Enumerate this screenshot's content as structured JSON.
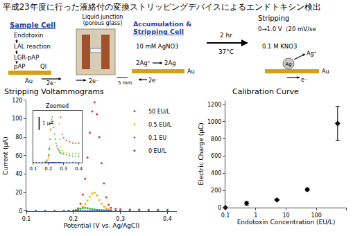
{
  "header": {
    "title": "平成23年度に行った液絡付の変換ストリッピングデバイスによるエンドトキシン検出"
  },
  "diagram": {
    "sample_cell": {
      "title": "Sample Cell",
      "steps": [
        "Endotoxin",
        "LAL reaction",
        "LGR-pAP",
        "pAP",
        "QI"
      ],
      "electrode": "Au",
      "electrons": "2e⁻"
    },
    "photo": {
      "label": [
        "Liquid junction",
        "(porous glass)"
      ],
      "electrons": "2e⁻",
      "scale": "5 mm"
    },
    "accumulation_cell": {
      "title": [
        "Accumulation &",
        "Stripping Cell"
      ],
      "solution": "10 mM AgNO3",
      "reaction": [
        "2Ag⁺",
        "2Ag"
      ],
      "electrons": "2e⁻",
      "electrode": "Au"
    },
    "arrow": {
      "time": "2 hr",
      "temperature": "37°C"
    },
    "stripping": {
      "title": "Stripping",
      "sweep": "0→1.0 V（20 mV/se",
      "solution": "0.1 M KNO3",
      "metal": "Ag",
      "ion": "Ag⁺",
      "electron": "e⁻",
      "electrode": "Au"
    }
  },
  "chart_data": [
    {
      "type": "scatter",
      "title": "Stripping Voltammograms",
      "x_label": "Potential (V vs. Ag/AgCl)",
      "y_label": "Current (μA)",
      "x": [
        0.1,
        0.12,
        0.14,
        0.16,
        0.18,
        0.19,
        0.2,
        0.205,
        0.21,
        0.215,
        0.22,
        0.225,
        0.23,
        0.235,
        0.24,
        0.245,
        0.25,
        0.255,
        0.26,
        0.265,
        0.27,
        0.275,
        0.28,
        0.29,
        0.3,
        0.32,
        0.34,
        0.36,
        0.38,
        0.4
      ],
      "series": [
        {
          "name": "50 EU/L",
          "color": "#e82a2a",
          "values": [
            0,
            0,
            0,
            0,
            0,
            0,
            0.5,
            1,
            3,
            8,
            18,
            35,
            58,
            85,
            108,
            118,
            105,
            80,
            52,
            30,
            15,
            7,
            3.5,
            2.2,
            1.9,
            1.7,
            1.6,
            1.5,
            1.5,
            1.5
          ]
        },
        {
          "name": "0.5 EU/L",
          "color": "#f0b000",
          "values": [
            0,
            0,
            0,
            0,
            0,
            0.1,
            0.3,
            0.6,
            1.2,
            2.5,
            4.5,
            7.5,
            11.5,
            15.5,
            19,
            20,
            17,
            12,
            8,
            5,
            3,
            1.8,
            1.2,
            0.9,
            0.8,
            0.8,
            0.7,
            0.7,
            0.7,
            0.7
          ]
        },
        {
          "name": "0.1 EU",
          "color": "#3cb43c",
          "values": [
            0,
            0,
            0,
            0,
            0.05,
            0.2,
            0.6,
            1.1,
            1.8,
            2.6,
            3.3,
            3.5,
            3.2,
            2.7,
            2.2,
            1.8,
            1.5,
            1.3,
            1.1,
            1,
            0.9,
            0.8,
            0.75,
            0.7,
            0.65,
            0.6,
            0.55,
            0.5,
            0.5,
            0.5
          ]
        },
        {
          "name": "0 EU/L",
          "color": "#2f4fd0",
          "values": [
            0,
            0,
            0,
            0,
            0,
            0,
            0,
            0,
            0,
            0,
            0,
            0,
            0,
            0,
            0,
            0,
            0,
            0,
            0,
            0,
            0,
            0,
            0,
            0,
            0,
            0,
            0,
            0,
            0,
            0
          ]
        }
      ],
      "xlim": [
        0.1,
        0.42
      ],
      "xticks": [
        0.1,
        0.2,
        0.3,
        0.4
      ],
      "ylim": [
        0,
        120
      ],
      "yticks": [
        0,
        20,
        40,
        60,
        80,
        100,
        120
      ],
      "grid": false,
      "legend": "upper right",
      "marker": "circle",
      "inset": {
        "title": "Zoomed",
        "xlim": [
          0.1,
          0.42
        ],
        "xticks": [
          0.1,
          0.2,
          0.3,
          0.4
        ],
        "ylim": [
          0,
          4
        ],
        "tick_labels": "x",
        "scale_bar": {
          "value": 1,
          "label": "1 μA"
        }
      }
    },
    {
      "type": "scatter",
      "title": "Calibration Curve",
      "x_label": "Endotoxin Concentration (EU/L)",
      "y_label": "Electric Charge (μC)",
      "x": [
        0.1,
        0.5,
        5,
        50,
        500
      ],
      "values": [
        0,
        50,
        90,
        210,
        980
      ],
      "errors": [
        0,
        20,
        10,
        15,
        200
      ],
      "color": "#000000",
      "marker": "diamond",
      "log": "x",
      "xlim": [
        0.1,
        1000
      ],
      "xticks": [
        0.1,
        1,
        10,
        100,
        1000
      ],
      "ylim": [
        0,
        1250
      ],
      "yticks": [
        0,
        200,
        400,
        600,
        800,
        1000,
        1200
      ],
      "grid": false
    }
  ]
}
